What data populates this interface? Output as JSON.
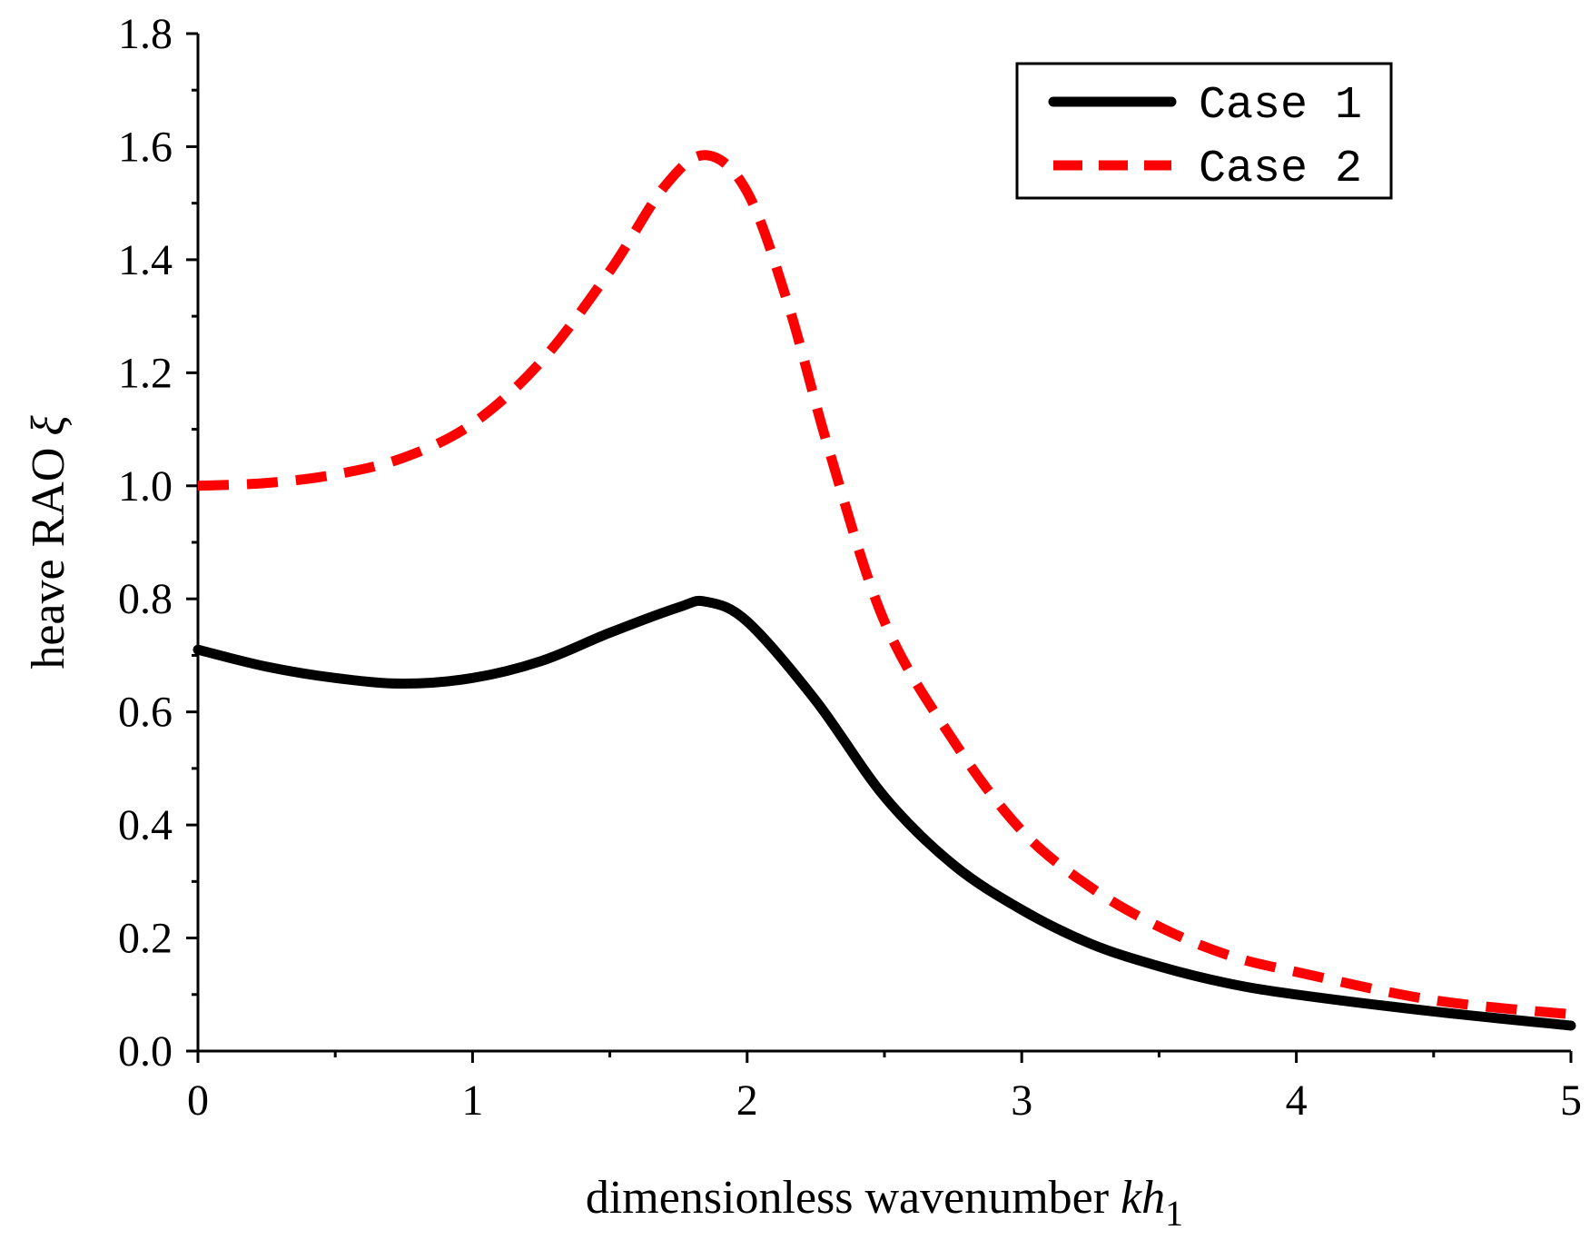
{
  "chart_data": {
    "type": "line",
    "title": "",
    "xlabel": "dimensionless wavenumber ",
    "xlabel_var": "kh",
    "xlabel_sub": "1",
    "ylabel": "heave RAO ",
    "ylabel_symbol": "ξ",
    "xlim": [
      0,
      5
    ],
    "ylim": [
      0,
      1.8
    ],
    "x_ticks": [
      "0",
      "1",
      "2",
      "3",
      "4",
      "5"
    ],
    "y_ticks": [
      "0.0",
      "0.2",
      "0.4",
      "0.6",
      "0.8",
      "1.0",
      "1.2",
      "1.4",
      "1.6",
      "1.8"
    ],
    "legend_position": "top-right",
    "series": [
      {
        "name": "Case  1",
        "color": "#000000",
        "style": "solid",
        "x": [
          0,
          0.25,
          0.5,
          0.75,
          1.0,
          1.25,
          1.5,
          1.75,
          1.85,
          2.0,
          2.25,
          2.5,
          2.75,
          3.0,
          3.25,
          3.5,
          3.75,
          4.0,
          4.5,
          5.0
        ],
        "y": [
          0.71,
          0.68,
          0.66,
          0.65,
          0.66,
          0.69,
          0.74,
          0.785,
          0.795,
          0.76,
          0.62,
          0.45,
          0.33,
          0.25,
          0.19,
          0.15,
          0.12,
          0.1,
          0.07,
          0.045
        ]
      },
      {
        "name": "Case  2",
        "color": "#ff0000",
        "style": "dashed",
        "x": [
          0,
          0.25,
          0.5,
          0.75,
          1.0,
          1.25,
          1.5,
          1.7,
          1.85,
          2.0,
          2.15,
          2.3,
          2.5,
          2.75,
          3.0,
          3.25,
          3.5,
          3.75,
          4.0,
          4.5,
          5.0
        ],
        "y": [
          1.0,
          1.005,
          1.02,
          1.05,
          1.11,
          1.22,
          1.38,
          1.53,
          1.585,
          1.52,
          1.32,
          1.06,
          0.76,
          0.55,
          0.39,
          0.29,
          0.22,
          0.17,
          0.14,
          0.09,
          0.065
        ]
      }
    ]
  }
}
